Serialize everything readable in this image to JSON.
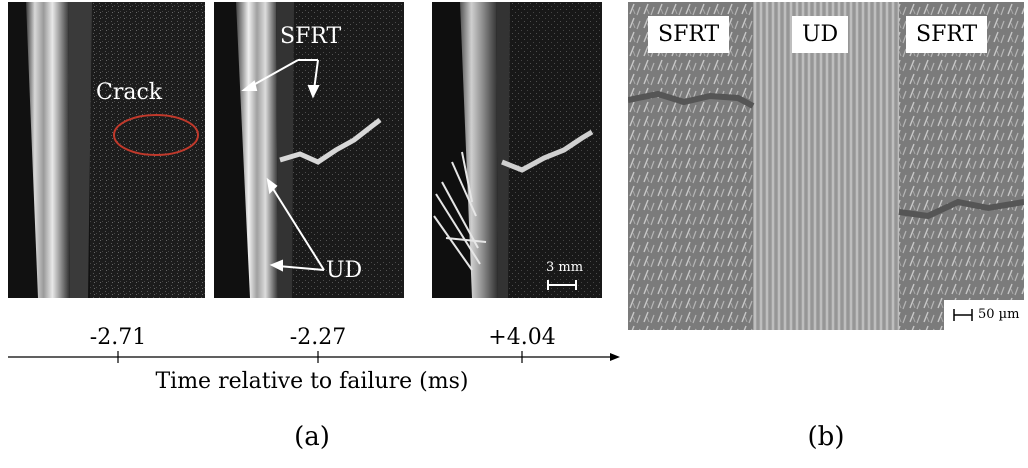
{
  "panel_a": {
    "frames": [
      {
        "annotations": [
          "Crack"
        ]
      },
      {
        "annotations": [
          "SFRT",
          "UD"
        ]
      },
      {
        "scale_bar": "3 mm"
      }
    ],
    "timeline": {
      "ticks": [
        "-2.71",
        "-2.27",
        "+4.04"
      ],
      "axis_label": "Time relative to failure (ms)"
    },
    "caption": "(a)"
  },
  "panel_b": {
    "labels": [
      "SFRT",
      "UD",
      "SFRT"
    ],
    "scale_bar": "50 µm",
    "caption": "(b)"
  },
  "colors": {
    "crack_ellipse": "#c0392b",
    "annotation_text": "#ffffff"
  }
}
